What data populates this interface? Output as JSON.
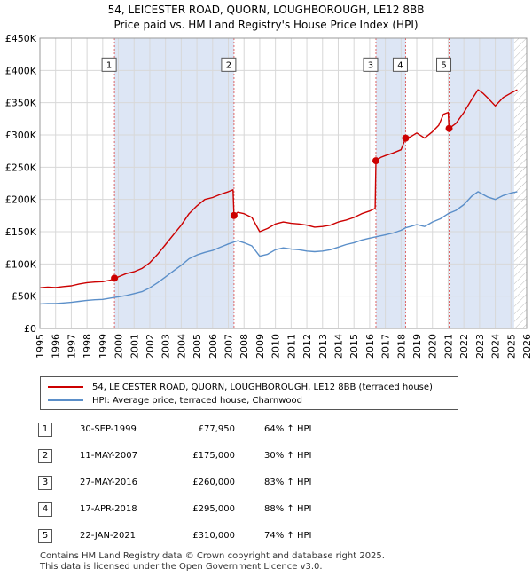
{
  "title_line1": "54, LEICESTER ROAD, QUORN, LOUGHBOROUGH, LE12 8BB",
  "title_line2": "Price paid vs. HM Land Registry's House Price Index (HPI)",
  "chart_data": {
    "type": "line",
    "xlim": [
      1995,
      2026
    ],
    "ylim": [
      0,
      450000
    ],
    "y_ticks": [
      0,
      50000,
      100000,
      150000,
      200000,
      250000,
      300000,
      350000,
      400000,
      450000
    ],
    "y_tick_labels": [
      "£0",
      "£50K",
      "£100K",
      "£150K",
      "£200K",
      "£250K",
      "£300K",
      "£350K",
      "£400K",
      "£450K"
    ],
    "x_ticks": [
      1995,
      1996,
      1997,
      1998,
      1999,
      2000,
      2001,
      2002,
      2003,
      2004,
      2005,
      2006,
      2007,
      2008,
      2009,
      2010,
      2011,
      2012,
      2013,
      2014,
      2015,
      2016,
      2017,
      2018,
      2019,
      2020,
      2021,
      2022,
      2023,
      2024,
      2025,
      2026
    ],
    "grid": true,
    "hatch_from": 2025.2,
    "shaded_ranges": [
      [
        1999.75,
        2007.36
      ],
      [
        2016.4,
        2018.3
      ],
      [
        2021.06,
        2025.2
      ]
    ],
    "colors": {
      "property": "#cc0000",
      "hpi": "#5b8fc9",
      "shade": "#dde6f5",
      "sale_line": "#dd6666"
    },
    "sales": [
      {
        "n": "1",
        "x": 1999.75,
        "price": 77950
      },
      {
        "n": "2",
        "x": 2007.36,
        "price": 175000
      },
      {
        "n": "3",
        "x": 2016.4,
        "price": 260000
      },
      {
        "n": "4",
        "x": 2018.29,
        "price": 295000
      },
      {
        "n": "5",
        "x": 2021.06,
        "price": 310000
      }
    ],
    "series": [
      {
        "name": "54, LEICESTER ROAD, QUORN, LOUGHBOROUGH, LE12 8BB (terraced house)",
        "points": [
          [
            1995,
            63000
          ],
          [
            1995.5,
            64000
          ],
          [
            1996,
            63500
          ],
          [
            1996.5,
            65000
          ],
          [
            1997,
            66000
          ],
          [
            1997.5,
            69000
          ],
          [
            1998,
            71000
          ],
          [
            1998.5,
            72000
          ],
          [
            1999,
            72500
          ],
          [
            1999.5,
            75000
          ],
          [
            1999.75,
            77950
          ],
          [
            2000,
            80000
          ],
          [
            2000.5,
            85000
          ],
          [
            2001,
            88000
          ],
          [
            2001.5,
            93000
          ],
          [
            2002,
            102000
          ],
          [
            2002.5,
            115000
          ],
          [
            2003,
            130000
          ],
          [
            2003.5,
            145000
          ],
          [
            2004,
            160000
          ],
          [
            2004.5,
            178000
          ],
          [
            2005,
            190000
          ],
          [
            2005.5,
            200000
          ],
          [
            2006,
            203000
          ],
          [
            2006.5,
            208000
          ],
          [
            2007,
            212000
          ],
          [
            2007.3,
            215000
          ],
          [
            2007.36,
            175000
          ],
          [
            2007.6,
            180000
          ],
          [
            2008,
            178000
          ],
          [
            2008.5,
            172000
          ],
          [
            2009,
            150000
          ],
          [
            2009.5,
            155000
          ],
          [
            2010,
            162000
          ],
          [
            2010.5,
            165000
          ],
          [
            2011,
            163000
          ],
          [
            2011.5,
            162000
          ],
          [
            2012,
            160000
          ],
          [
            2012.5,
            157000
          ],
          [
            2013,
            158000
          ],
          [
            2013.5,
            160000
          ],
          [
            2014,
            165000
          ],
          [
            2014.5,
            168000
          ],
          [
            2015,
            172000
          ],
          [
            2015.5,
            178000
          ],
          [
            2016,
            182000
          ],
          [
            2016.35,
            186000
          ],
          [
            2016.4,
            260000
          ],
          [
            2016.7,
            265000
          ],
          [
            2017,
            268000
          ],
          [
            2017.5,
            272000
          ],
          [
            2018,
            277000
          ],
          [
            2018.29,
            295000
          ],
          [
            2018.6,
            297000
          ],
          [
            2019,
            303000
          ],
          [
            2019.5,
            295000
          ],
          [
            2020,
            305000
          ],
          [
            2020.4,
            315000
          ],
          [
            2020.7,
            332000
          ],
          [
            2021,
            335000
          ],
          [
            2021.06,
            310000
          ],
          [
            2021.5,
            318000
          ],
          [
            2022,
            335000
          ],
          [
            2022.5,
            355000
          ],
          [
            2022.9,
            370000
          ],
          [
            2023.2,
            365000
          ],
          [
            2023.5,
            358000
          ],
          [
            2024,
            345000
          ],
          [
            2024.5,
            358000
          ],
          [
            2025,
            365000
          ],
          [
            2025.4,
            370000
          ]
        ]
      },
      {
        "name": "HPI: Average price, terraced house, Charnwood",
        "points": [
          [
            1995,
            38000
          ],
          [
            1995.5,
            38500
          ],
          [
            1996,
            38500
          ],
          [
            1996.5,
            39500
          ],
          [
            1997,
            40500
          ],
          [
            1997.5,
            42000
          ],
          [
            1998,
            43500
          ],
          [
            1998.5,
            44500
          ],
          [
            1999,
            45000
          ],
          [
            1999.5,
            47000
          ],
          [
            1999.75,
            48000
          ],
          [
            2000,
            49000
          ],
          [
            2000.5,
            51000
          ],
          [
            2001,
            54000
          ],
          [
            2001.5,
            57000
          ],
          [
            2002,
            63000
          ],
          [
            2002.5,
            71000
          ],
          [
            2003,
            80000
          ],
          [
            2003.5,
            89000
          ],
          [
            2004,
            98000
          ],
          [
            2004.5,
            108000
          ],
          [
            2005,
            114000
          ],
          [
            2005.5,
            118000
          ],
          [
            2006,
            121000
          ],
          [
            2006.5,
            126000
          ],
          [
            2007,
            131000
          ],
          [
            2007.36,
            134000
          ],
          [
            2007.6,
            136000
          ],
          [
            2008,
            133000
          ],
          [
            2008.5,
            128000
          ],
          [
            2009,
            112000
          ],
          [
            2009.5,
            115000
          ],
          [
            2010,
            122000
          ],
          [
            2010.5,
            125000
          ],
          [
            2011,
            123000
          ],
          [
            2011.5,
            122000
          ],
          [
            2012,
            120000
          ],
          [
            2012.5,
            119000
          ],
          [
            2013,
            120000
          ],
          [
            2013.5,
            122000
          ],
          [
            2014,
            126000
          ],
          [
            2014.5,
            130000
          ],
          [
            2015,
            133000
          ],
          [
            2015.5,
            137000
          ],
          [
            2016,
            140000
          ],
          [
            2016.4,
            142000
          ],
          [
            2017,
            145000
          ],
          [
            2017.5,
            148000
          ],
          [
            2018,
            152000
          ],
          [
            2018.29,
            156000
          ],
          [
            2018.6,
            158000
          ],
          [
            2019,
            161000
          ],
          [
            2019.5,
            158000
          ],
          [
            2020,
            165000
          ],
          [
            2020.5,
            170000
          ],
          [
            2021,
            178000
          ],
          [
            2021.5,
            183000
          ],
          [
            2022,
            192000
          ],
          [
            2022.5,
            205000
          ],
          [
            2022.9,
            212000
          ],
          [
            2023.2,
            208000
          ],
          [
            2023.5,
            204000
          ],
          [
            2024,
            200000
          ],
          [
            2024.5,
            206000
          ],
          [
            2025,
            210000
          ],
          [
            2025.4,
            212000
          ]
        ]
      }
    ]
  },
  "legend": {
    "property_label": "54, LEICESTER ROAD, QUORN, LOUGHBOROUGH, LE12 8BB (terraced house)",
    "hpi_label": "HPI: Average price, terraced house, Charnwood"
  },
  "table": [
    {
      "n": "1",
      "date": "30-SEP-1999",
      "price": "£77,950",
      "hpi": "64% ↑ HPI"
    },
    {
      "n": "2",
      "date": "11-MAY-2007",
      "price": "£175,000",
      "hpi": "30% ↑ HPI"
    },
    {
      "n": "3",
      "date": "27-MAY-2016",
      "price": "£260,000",
      "hpi": "83% ↑ HPI"
    },
    {
      "n": "4",
      "date": "17-APR-2018",
      "price": "£295,000",
      "hpi": "88% ↑ HPI"
    },
    {
      "n": "5",
      "date": "22-JAN-2021",
      "price": "£310,000",
      "hpi": "74% ↑ HPI"
    }
  ],
  "footer_line1": "Contains HM Land Registry data © Crown copyright and database right 2025.",
  "footer_line2": "This data is licensed under the Open Government Licence v3.0."
}
